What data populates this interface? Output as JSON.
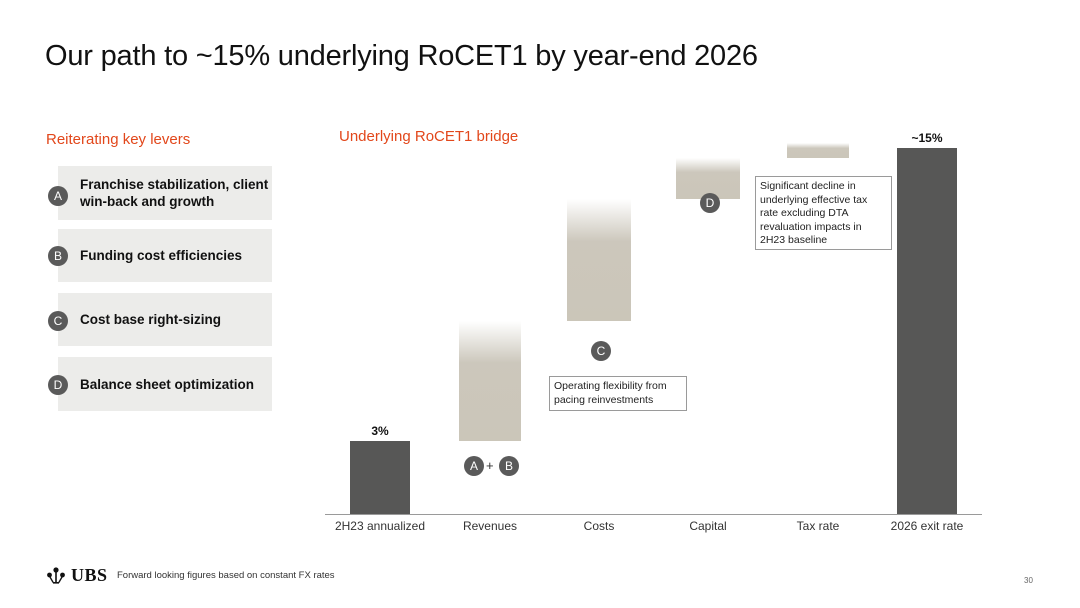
{
  "title": "Our path to ~15% underlying RoCET1 by year-end 2026",
  "levers": {
    "heading": "Reiterating key levers",
    "items": [
      {
        "badge": "A",
        "text": "Franchise stabilization, client win-back and growth"
      },
      {
        "badge": "B",
        "text": "Funding cost efficiencies"
      },
      {
        "badge": "C",
        "text": "Cost base right-sizing"
      },
      {
        "badge": "D",
        "text": "Balance sheet optimization"
      }
    ]
  },
  "chart_data": {
    "type": "bar",
    "subtype": "waterfall",
    "title": "Underlying RoCET1 bridge",
    "xlabel": "",
    "ylabel": "",
    "categories": [
      "2H23 annualized",
      "Revenues",
      "Costs",
      "Capital",
      "Tax rate",
      "2026 exit rate"
    ],
    "values": [
      3,
      4.9,
      5.0,
      1.7,
      0.6,
      15
    ],
    "value_labels": [
      "3%",
      "",
      "",
      "",
      "",
      "~15%"
    ],
    "ylim": [
      0,
      15.5
    ],
    "grid": false,
    "legend": "none",
    "colors": {
      "total": "#575756",
      "step": "#cbc6b9"
    }
  },
  "annotations": {
    "rev_badges": [
      "A",
      "B"
    ],
    "rev_plus": "+",
    "costs_badge": "C",
    "costs_note": "Operating flexibility from pacing reinvestments",
    "capital_badge": "D",
    "tax_note": "Significant decline in underlying effective tax rate excluding DTA revaluation impacts in 2H23 baseline"
  },
  "footer": {
    "logo": "UBS",
    "note": "Forward looking figures based on constant FX rates",
    "page": "30"
  }
}
